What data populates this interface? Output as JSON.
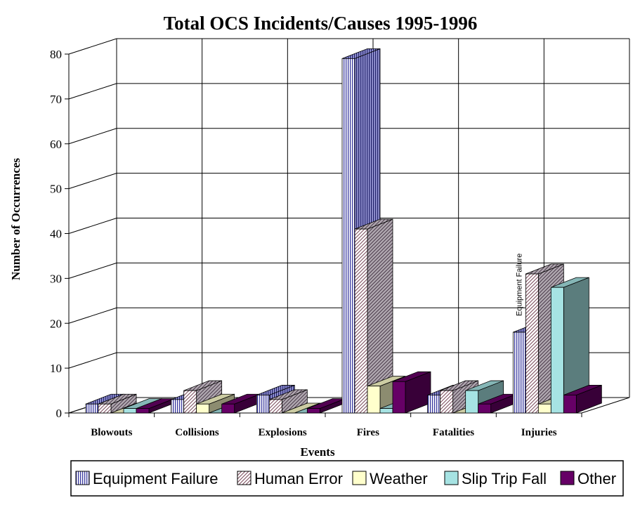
{
  "chart_data": {
    "type": "bar",
    "title": "Total OCS Incidents/Causes 1995-1996",
    "xlabel": "Events",
    "ylabel": "Number of Occurrences",
    "ylim": [
      0,
      80
    ],
    "yticks": [
      "0",
      "10",
      "20",
      "30",
      "40",
      "50",
      "60",
      "70",
      "80"
    ],
    "categories": [
      "Blowouts",
      "Collisions",
      "Explosions",
      "Fires",
      "Fatalities",
      "Injuries"
    ],
    "series": [
      {
        "name": "Equipment Failure",
        "values": [
          2,
          3,
          4,
          79,
          4,
          18
        ],
        "color": "#3a3aa0",
        "pattern": "vertical-stripes"
      },
      {
        "name": "Human Error",
        "values": [
          2,
          5,
          3,
          41,
          5,
          31
        ],
        "color": "#7a6f7a",
        "pattern": "diagonal-hatch"
      },
      {
        "name": "Weather",
        "values": [
          0,
          2,
          0,
          6,
          0,
          2
        ],
        "color": "#ffffcc",
        "pattern": "solid"
      },
      {
        "name": "Slip Trip Fall",
        "values": [
          1,
          0,
          0,
          1,
          5,
          28
        ],
        "color": "#a6e3e3",
        "pattern": "solid"
      },
      {
        "name": "Other",
        "values": [
          1,
          2,
          1,
          7,
          2,
          4
        ],
        "color": "#660066",
        "pattern": "solid"
      }
    ],
    "annotations": [
      {
        "text": "Equipment Failure",
        "category": "Injuries",
        "orientation": "vertical"
      }
    ],
    "grid": true,
    "legend_position": "bottom"
  }
}
